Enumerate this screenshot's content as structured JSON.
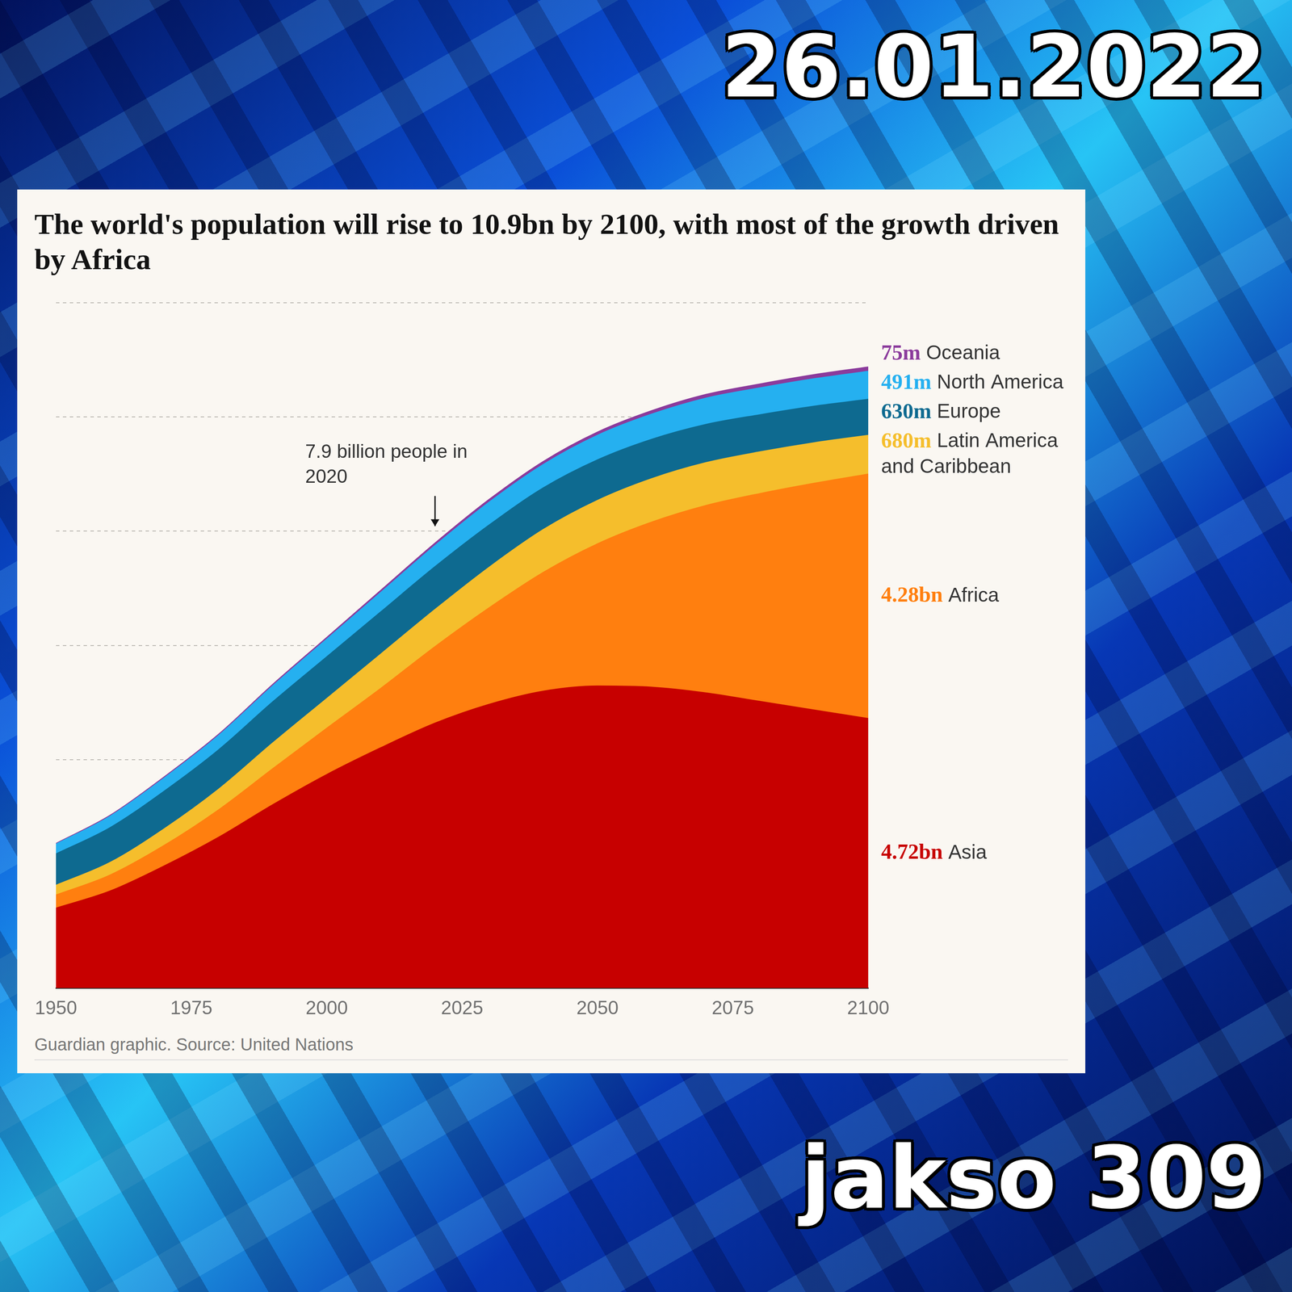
{
  "frame": {
    "date": "26.01.2022",
    "episode": "jakso 309"
  },
  "chart_data": {
    "type": "area",
    "title": "The world's population will rise to 10.9bn by 2100, with most of the growth driven by Africa",
    "source": "Guardian graphic. Source: United Nations",
    "x": [
      1950,
      1960,
      1970,
      1980,
      1990,
      2000,
      2010,
      2020,
      2030,
      2040,
      2050,
      2060,
      2070,
      2080,
      2090,
      2100
    ],
    "xlim": [
      1950,
      2100
    ],
    "xticks": [
      1950,
      1975,
      2000,
      2025,
      2050,
      2075,
      2100
    ],
    "ylim": [
      0,
      12
    ],
    "yticks": [
      0,
      2,
      4,
      6,
      8,
      10,
      12
    ],
    "tick_labels": "x",
    "grid": true,
    "stacked": true,
    "series": [
      {
        "name": "Asia",
        "color": "#c70000",
        "values": [
          1.4,
          1.7,
          2.14,
          2.64,
          3.21,
          3.74,
          4.21,
          4.64,
          4.97,
          5.2,
          5.29,
          5.27,
          5.17,
          5.02,
          4.87,
          4.72
        ],
        "value_labels": [
          null,
          null,
          null,
          null,
          null,
          null,
          null,
          null,
          null,
          null,
          null,
          null,
          null,
          null,
          null,
          "4.72bn"
        ]
      },
      {
        "name": "Africa",
        "color": "#ff7f0f",
        "values": [
          0.23,
          0.28,
          0.36,
          0.48,
          0.63,
          0.81,
          1.04,
          1.34,
          1.69,
          2.08,
          2.49,
          2.89,
          3.28,
          3.64,
          3.97,
          4.28
        ],
        "value_labels": [
          null,
          null,
          null,
          null,
          null,
          null,
          null,
          null,
          null,
          null,
          null,
          null,
          null,
          null,
          null,
          "4.28bn"
        ]
      },
      {
        "name": "Latin America and Caribbean",
        "color": "#f5be2c",
        "values": [
          0.17,
          0.22,
          0.29,
          0.36,
          0.45,
          0.52,
          0.6,
          0.65,
          0.71,
          0.75,
          0.76,
          0.76,
          0.75,
          0.73,
          0.71,
          0.68
        ],
        "value_labels": [
          null,
          null,
          null,
          null,
          null,
          null,
          null,
          null,
          null,
          null,
          null,
          null,
          null,
          null,
          null,
          "680m"
        ]
      },
      {
        "name": "Europe",
        "color": "#0e6a90",
        "values": [
          0.55,
          0.61,
          0.66,
          0.69,
          0.72,
          0.73,
          0.74,
          0.75,
          0.74,
          0.73,
          0.71,
          0.69,
          0.67,
          0.65,
          0.64,
          0.63
        ],
        "value_labels": [
          null,
          null,
          null,
          null,
          null,
          null,
          null,
          null,
          null,
          null,
          null,
          null,
          null,
          null,
          null,
          "630m"
        ]
      },
      {
        "name": "North America",
        "color": "#25b0f0",
        "values": [
          0.17,
          0.2,
          0.23,
          0.25,
          0.28,
          0.31,
          0.34,
          0.37,
          0.4,
          0.41,
          0.43,
          0.44,
          0.46,
          0.47,
          0.48,
          0.491
        ],
        "value_labels": [
          null,
          null,
          null,
          null,
          null,
          null,
          null,
          null,
          null,
          null,
          null,
          null,
          null,
          null,
          null,
          "491m"
        ]
      },
      {
        "name": "Oceania",
        "color": "#8b3b9c",
        "values": [
          0.013,
          0.016,
          0.02,
          0.023,
          0.027,
          0.031,
          0.037,
          0.043,
          0.048,
          0.053,
          0.057,
          0.061,
          0.065,
          0.069,
          0.072,
          0.075
        ],
        "value_labels": [
          null,
          null,
          null,
          null,
          null,
          null,
          null,
          null,
          null,
          null,
          null,
          null,
          null,
          null,
          null,
          "75m"
        ]
      }
    ],
    "annotations": [
      {
        "text": "7.9 billion people in 2020",
        "x": 2020,
        "y": 7.9
      }
    ]
  }
}
